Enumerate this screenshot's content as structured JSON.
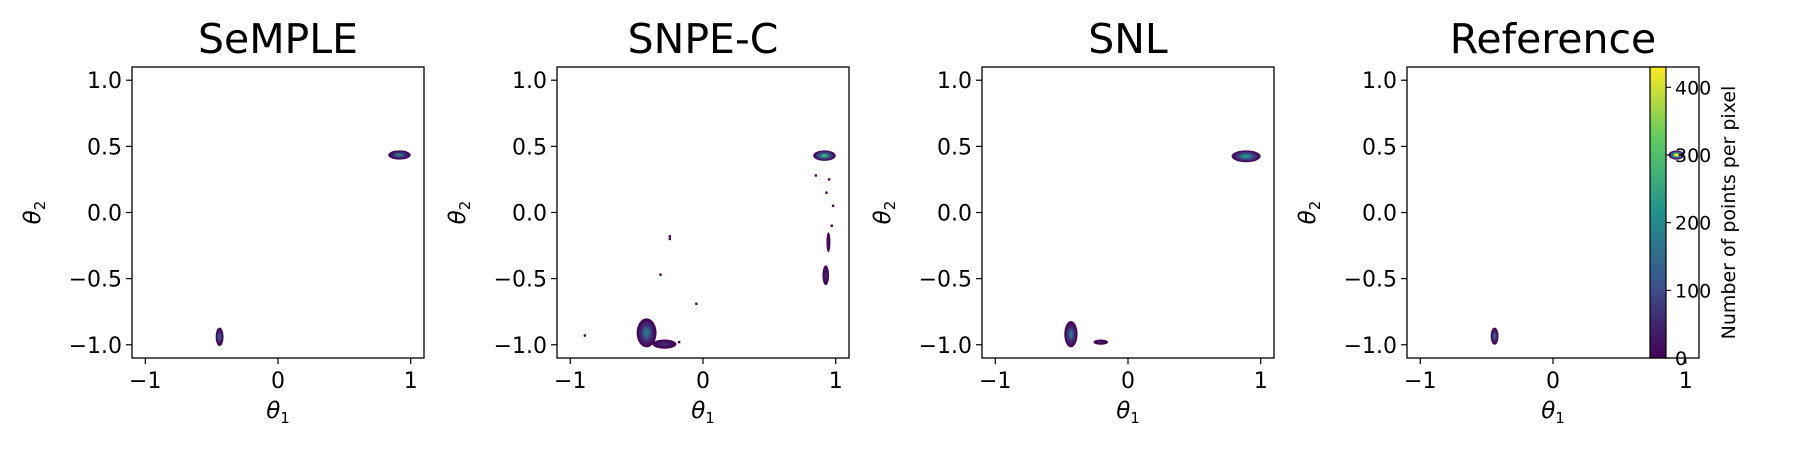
{
  "chart_data": [
    {
      "type": "heatmap",
      "title": "SeMPLE",
      "xlabel": "θ1",
      "ylabel": "θ2",
      "xlim": [
        -1.1,
        1.1
      ],
      "ylim": [
        -1.1,
        1.1
      ],
      "xticks": [
        "−1",
        "0",
        "1"
      ],
      "yticks": [
        "1.0",
        "0.5",
        "0.0",
        "−0.5",
        "−1.0"
      ],
      "regions": [
        {
          "x": [
            -0.47,
            -0.41
          ],
          "y": [
            -1.01,
            -0.87
          ],
          "peak": 120
        },
        {
          "x": [
            0.83,
            1.0
          ],
          "y": [
            0.4,
            0.47
          ],
          "peak": 160
        }
      ],
      "specks": []
    },
    {
      "type": "heatmap",
      "title": "SNPE-C",
      "xlabel": "θ1",
      "ylabel": "θ2",
      "xlim": [
        -1.1,
        1.1
      ],
      "ylim": [
        -1.1,
        1.1
      ],
      "xticks": [
        "−1",
        "0",
        "1"
      ],
      "yticks": [
        "1.0",
        "0.5",
        "0.0",
        "−0.5",
        "−1.0"
      ],
      "regions": [
        {
          "x": [
            -0.5,
            -0.35
          ],
          "y": [
            -1.02,
            -0.8
          ],
          "peak": 160
        },
        {
          "x": [
            -0.38,
            -0.2
          ],
          "y": [
            -1.03,
            -0.96
          ],
          "peak": 60
        },
        {
          "x": [
            0.83,
            1.0
          ],
          "y": [
            0.39,
            0.47
          ],
          "peak": 260
        },
        {
          "x": [
            0.9,
            0.95
          ],
          "y": [
            -0.55,
            -0.4
          ],
          "peak": 50
        },
        {
          "x": [
            0.93,
            0.96
          ],
          "y": [
            -0.3,
            -0.15
          ],
          "peak": 30
        }
      ],
      "specks": [
        {
          "x": -0.25,
          "y": -0.18
        },
        {
          "x": -0.25,
          "y": -0.2
        },
        {
          "x": -0.32,
          "y": -0.47
        },
        {
          "x": -0.05,
          "y": -0.69
        },
        {
          "x": -0.18,
          "y": -0.98
        },
        {
          "x": -0.89,
          "y": -0.93
        },
        {
          "x": 0.85,
          "y": 0.28
        },
        {
          "x": 0.95,
          "y": 0.25
        },
        {
          "x": 0.98,
          "y": 0.05
        },
        {
          "x": 0.93,
          "y": 0.15
        },
        {
          "x": 0.97,
          "y": -0.1
        }
      ]
    },
    {
      "type": "heatmap",
      "title": "SNL",
      "xlabel": "θ1",
      "ylabel": "θ2",
      "xlim": [
        -1.1,
        1.1
      ],
      "ylim": [
        -1.1,
        1.1
      ],
      "xticks": [
        "−1",
        "0",
        "1"
      ],
      "yticks": [
        "1.0",
        "0.5",
        "0.0",
        "−0.5",
        "−1.0"
      ],
      "regions": [
        {
          "x": [
            -0.48,
            -0.38
          ],
          "y": [
            -1.02,
            -0.82
          ],
          "peak": 150
        },
        {
          "x": [
            -0.26,
            -0.15
          ],
          "y": [
            -1.0,
            -0.96
          ],
          "peak": 40
        },
        {
          "x": [
            0.78,
            1.0
          ],
          "y": [
            0.38,
            0.47
          ],
          "peak": 220
        }
      ],
      "specks": []
    },
    {
      "type": "heatmap",
      "title": "Reference",
      "xlabel": "θ1",
      "ylabel": "θ2",
      "xlim": [
        -1.1,
        1.1
      ],
      "ylim": [
        -1.1,
        1.1
      ],
      "xticks": [
        "−1",
        "0",
        "1"
      ],
      "yticks": [
        "1.0",
        "0.5",
        "0.0",
        "−0.5",
        "−1.0"
      ],
      "regions": [
        {
          "x": [
            -0.47,
            -0.41
          ],
          "y": [
            -1.0,
            -0.87
          ],
          "peak": 130
        },
        {
          "x": [
            0.87,
            0.99
          ],
          "y": [
            0.4,
            0.47
          ],
          "peak": 430
        }
      ],
      "specks": []
    }
  ],
  "colorbar": {
    "label": "Number of points per pixel",
    "ticks": [
      {
        "value": 0,
        "label": "0"
      },
      {
        "value": 100,
        "label": "100"
      },
      {
        "value": 200,
        "label": "200"
      },
      {
        "value": 300,
        "label": "300"
      },
      {
        "value": 400,
        "label": "400"
      }
    ],
    "range": [
      0,
      430
    ],
    "colormap": "viridis",
    "colors": [
      "#440154",
      "#3b528b",
      "#21918c",
      "#5ec962",
      "#fde725"
    ]
  }
}
